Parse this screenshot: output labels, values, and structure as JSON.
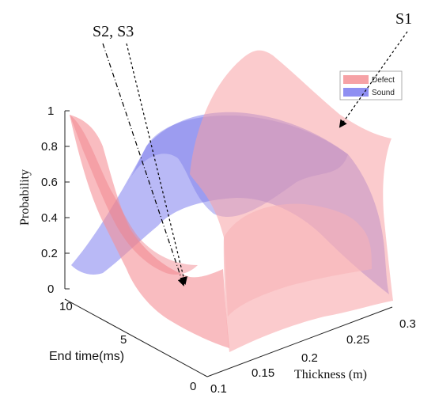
{
  "chart_data": {
    "type": "surface",
    "zlabel": "Probability",
    "xlabel": "Thickness (m)",
    "ylabel": "End time(ms)",
    "z_ticks": [
      "0",
      "0.2",
      "0.4",
      "0.6",
      "0.8",
      "1"
    ],
    "y_ticks": [
      "0",
      "5",
      "10"
    ],
    "x_ticks": [
      "0.1",
      "0.15",
      "0.2",
      "0.25",
      "0.3"
    ],
    "zlim": [
      0,
      1
    ],
    "ylim": [
      0,
      10
    ],
    "xlim": [
      0.1,
      0.3
    ],
    "series": [
      {
        "name": "Defect",
        "color": "#f6a2a6"
      },
      {
        "name": "Sound",
        "color": "#8f8ff2"
      }
    ],
    "legend": {
      "placement": "top-right",
      "entries": [
        "Defect",
        "Sound"
      ]
    },
    "annotations": [
      {
        "text": "S2, S3"
      },
      {
        "text": "S1"
      }
    ]
  }
}
